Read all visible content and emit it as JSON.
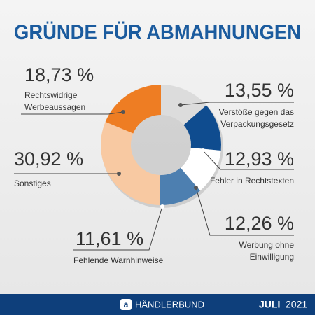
{
  "chart_data": {
    "type": "donut",
    "title": "GRÜNDE FÜR ABMAHNUNGEN",
    "categories": [
      "Verstöße gegen das Verpackungsgesetz",
      "Fehler in Rechtstexten",
      "Werbung ohne Einwilligung",
      "Fehlende Warnhinweise",
      "Sonstiges",
      "Rechtswidrige Werbeaussagen"
    ],
    "values": [
      13.55,
      12.93,
      12.26,
      11.61,
      30.92,
      18.73
    ],
    "value_labels": [
      "13,55 %",
      "12,93 %",
      "12,26 %",
      "11,61 %",
      "30,92 %",
      "18,73 %"
    ],
    "colors": [
      "#dcdcdc",
      "#0f4c8f",
      "#ffffff",
      "#4d7fb0",
      "#f8c9a2",
      "#ee7d23"
    ]
  },
  "footer": {
    "brand": "HÄNDLERBUND",
    "month": "JULI",
    "year": "2021"
  }
}
